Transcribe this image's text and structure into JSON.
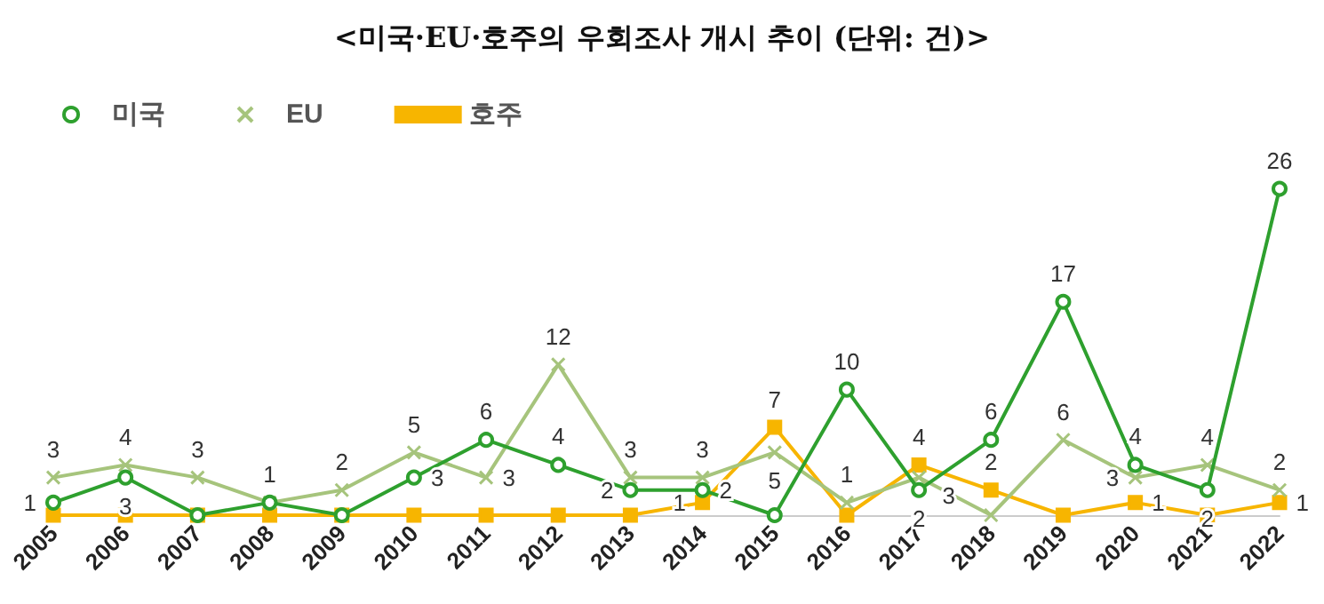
{
  "chart_data": {
    "type": "line",
    "title": "<미국·EU·호주의 우회조사 개시 추이 (단위: 건)>",
    "categories": [
      "2005",
      "2006",
      "2007",
      "2008",
      "2009",
      "2010",
      "2011",
      "2012",
      "2013",
      "2014",
      "2015",
      "2016",
      "2017",
      "2018",
      "2019",
      "2020",
      "2021",
      "2022"
    ],
    "series": [
      {
        "name": "미국",
        "color": "#2ea02e",
        "marker": "circle",
        "values": [
          1,
          3,
          0,
          1,
          0,
          3,
          6,
          4,
          2,
          2,
          0,
          10,
          2,
          6,
          17,
          4,
          2,
          26
        ],
        "value_labels": [
          "1",
          "3",
          null,
          null,
          null,
          "3",
          "6",
          "4",
          "2",
          "2",
          null,
          "10",
          "2",
          "6",
          "17",
          "4",
          "2",
          "26"
        ]
      },
      {
        "name": "EU",
        "color": "#a6c47c",
        "marker": "cross",
        "values": [
          3,
          4,
          3,
          1,
          2,
          5,
          3,
          12,
          3,
          3,
          5,
          1,
          3,
          0,
          6,
          3,
          4,
          2
        ],
        "value_labels": [
          "3",
          "4",
          "3",
          "1",
          "2",
          "5",
          "3",
          "12",
          "3",
          "3",
          "5",
          "1",
          "3",
          null,
          "6",
          "3",
          "4",
          "2"
        ]
      },
      {
        "name": "호주",
        "color": "#f7b500",
        "marker": "square",
        "values": [
          0,
          0,
          0,
          0,
          0,
          0,
          0,
          0,
          0,
          1,
          7,
          0,
          4,
          2,
          0,
          1,
          0,
          1
        ],
        "value_labels": [
          null,
          null,
          null,
          null,
          null,
          null,
          null,
          null,
          null,
          "1",
          "7",
          null,
          "4",
          "2",
          null,
          "1",
          null,
          "1"
        ]
      }
    ],
    "legend": "top left",
    "grid": false
  }
}
